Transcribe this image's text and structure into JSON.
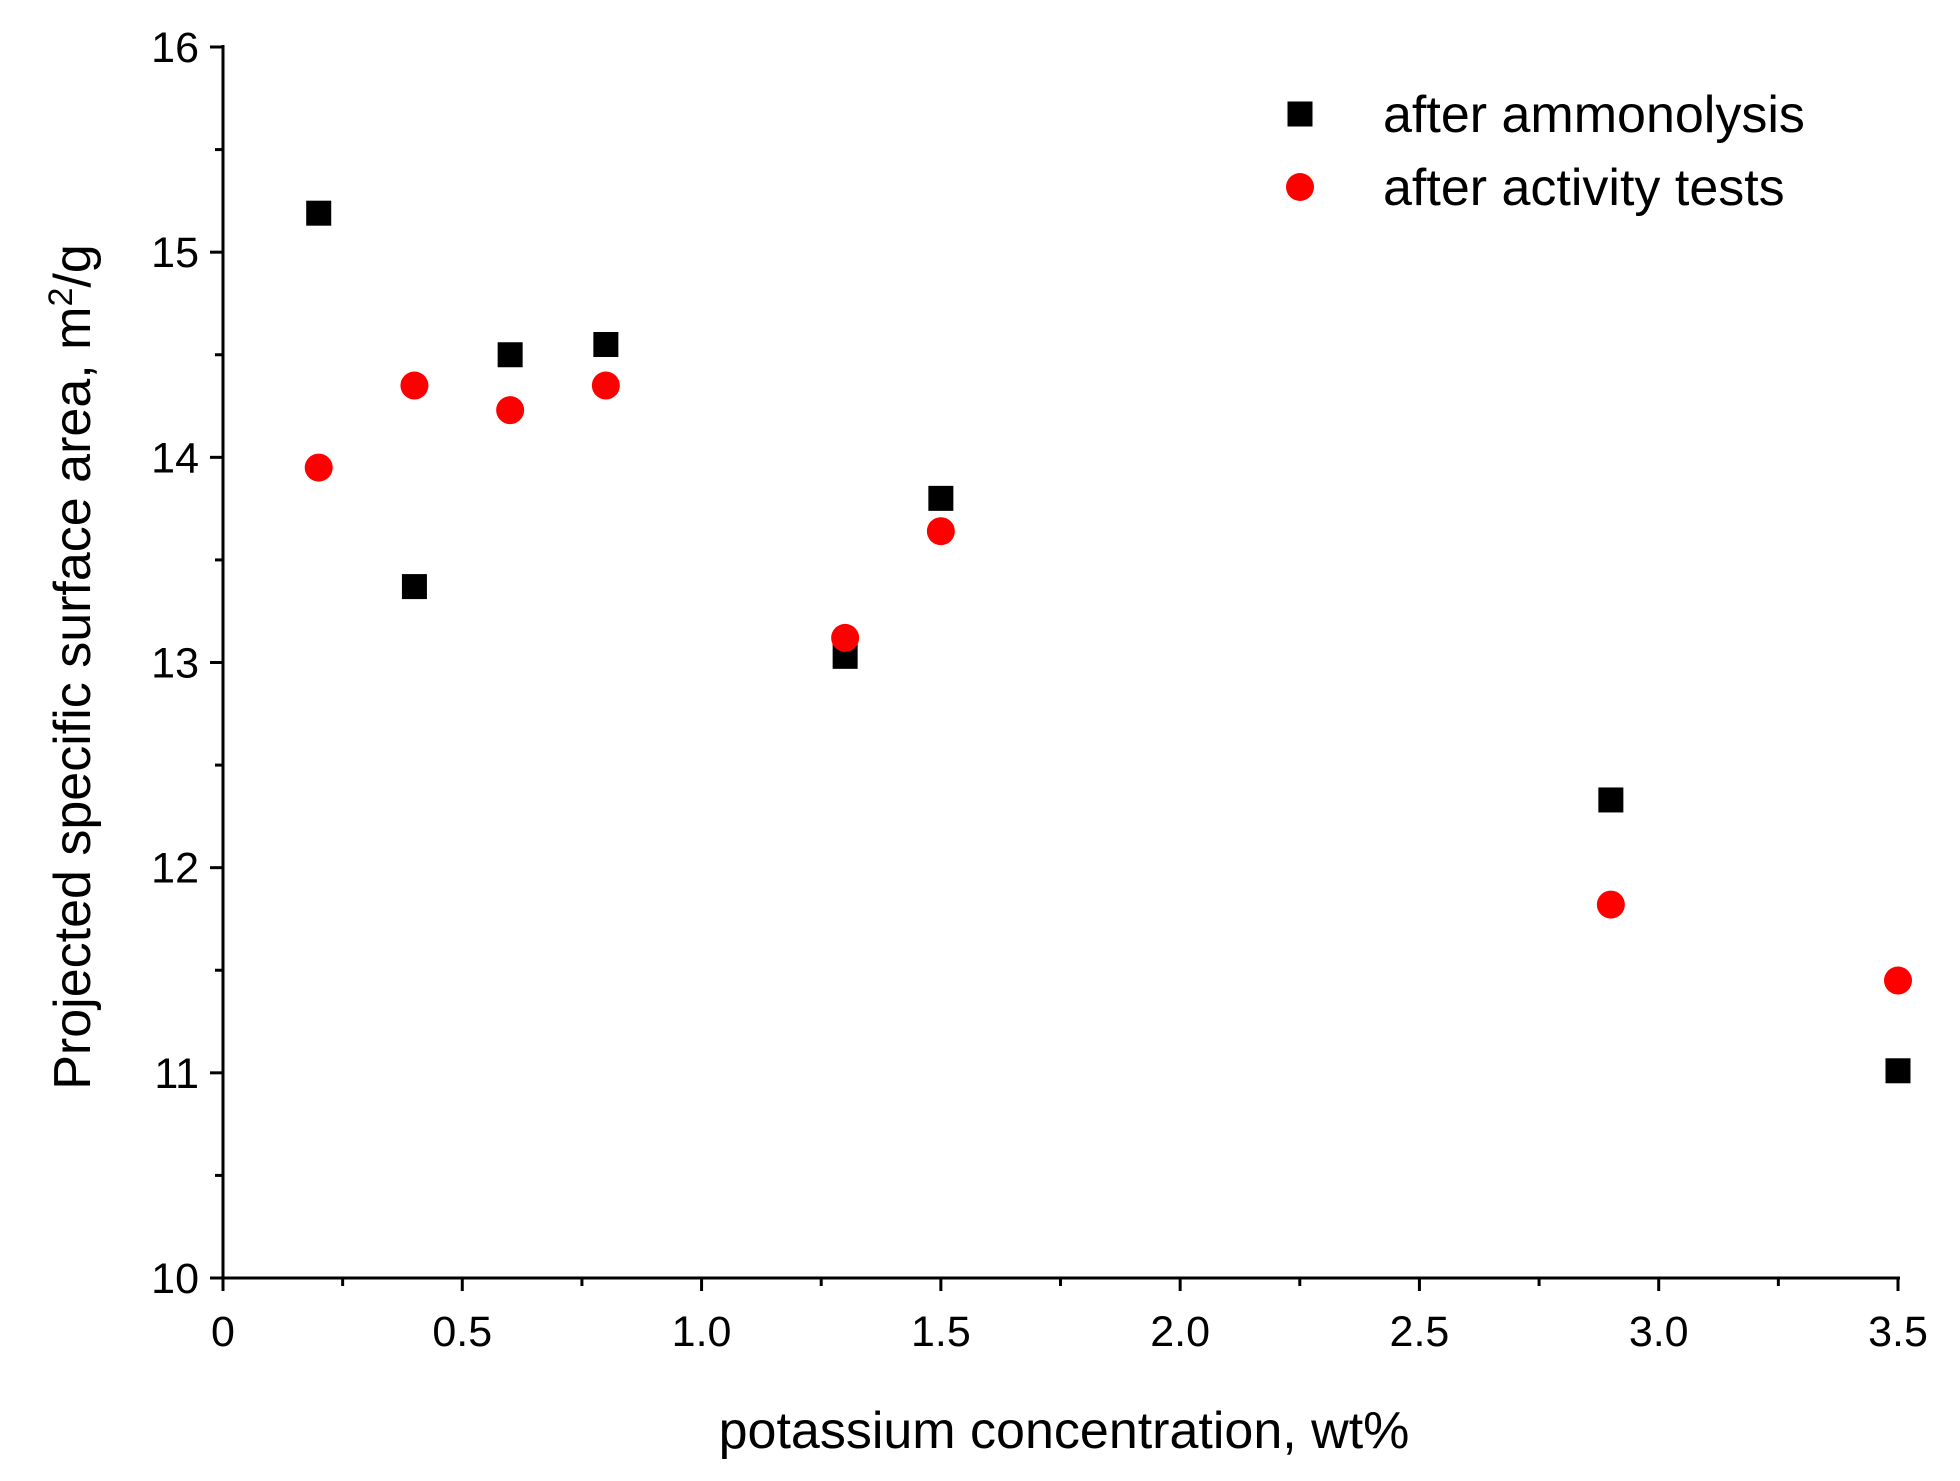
{
  "chart_data": {
    "type": "scatter",
    "title": "",
    "xlabel": "potassium concentration, wt%",
    "ylabel_main": "Projected specific surface area, m",
    "ylabel_sup": "2",
    "ylabel_tail": "/g",
    "xlim": [
      0,
      3.5
    ],
    "ylim": [
      10,
      16
    ],
    "x_ticks": [
      {
        "value": 0,
        "label": "0"
      },
      {
        "value": 0.5,
        "label": "0.5"
      },
      {
        "value": 1.0,
        "label": "1.0"
      },
      {
        "value": 1.5,
        "label": "1.5"
      },
      {
        "value": 2.0,
        "label": "2.0"
      },
      {
        "value": 2.5,
        "label": "2.5"
      },
      {
        "value": 3.0,
        "label": "3.0"
      },
      {
        "value": 3.5,
        "label": "3.5"
      }
    ],
    "y_ticks": [
      {
        "value": 10,
        "label": "10"
      },
      {
        "value": 11,
        "label": "11"
      },
      {
        "value": 12,
        "label": "12"
      },
      {
        "value": 13,
        "label": "13"
      },
      {
        "value": 14,
        "label": "14"
      },
      {
        "value": 15,
        "label": "15"
      },
      {
        "value": 16,
        "label": "16"
      }
    ],
    "x_minor_step": 0.25,
    "y_minor_step": 0.5,
    "grid": false,
    "legend_position": "top-right",
    "series": [
      {
        "name": "after ammonolysis",
        "marker": "square",
        "color": "#000000",
        "x": [
          0.2,
          0.4,
          0.6,
          0.8,
          1.3,
          1.5,
          2.9,
          3.5
        ],
        "y": [
          15.19,
          13.37,
          14.5,
          14.55,
          13.03,
          13.8,
          12.33,
          11.01
        ]
      },
      {
        "name": "after activity tests",
        "marker": "circle",
        "color": "#ff0000",
        "x": [
          0.2,
          0.4,
          0.6,
          0.8,
          1.3,
          1.5,
          2.9,
          3.5
        ],
        "y": [
          13.95,
          14.35,
          14.23,
          14.35,
          13.12,
          13.64,
          11.82,
          11.45
        ]
      }
    ]
  }
}
